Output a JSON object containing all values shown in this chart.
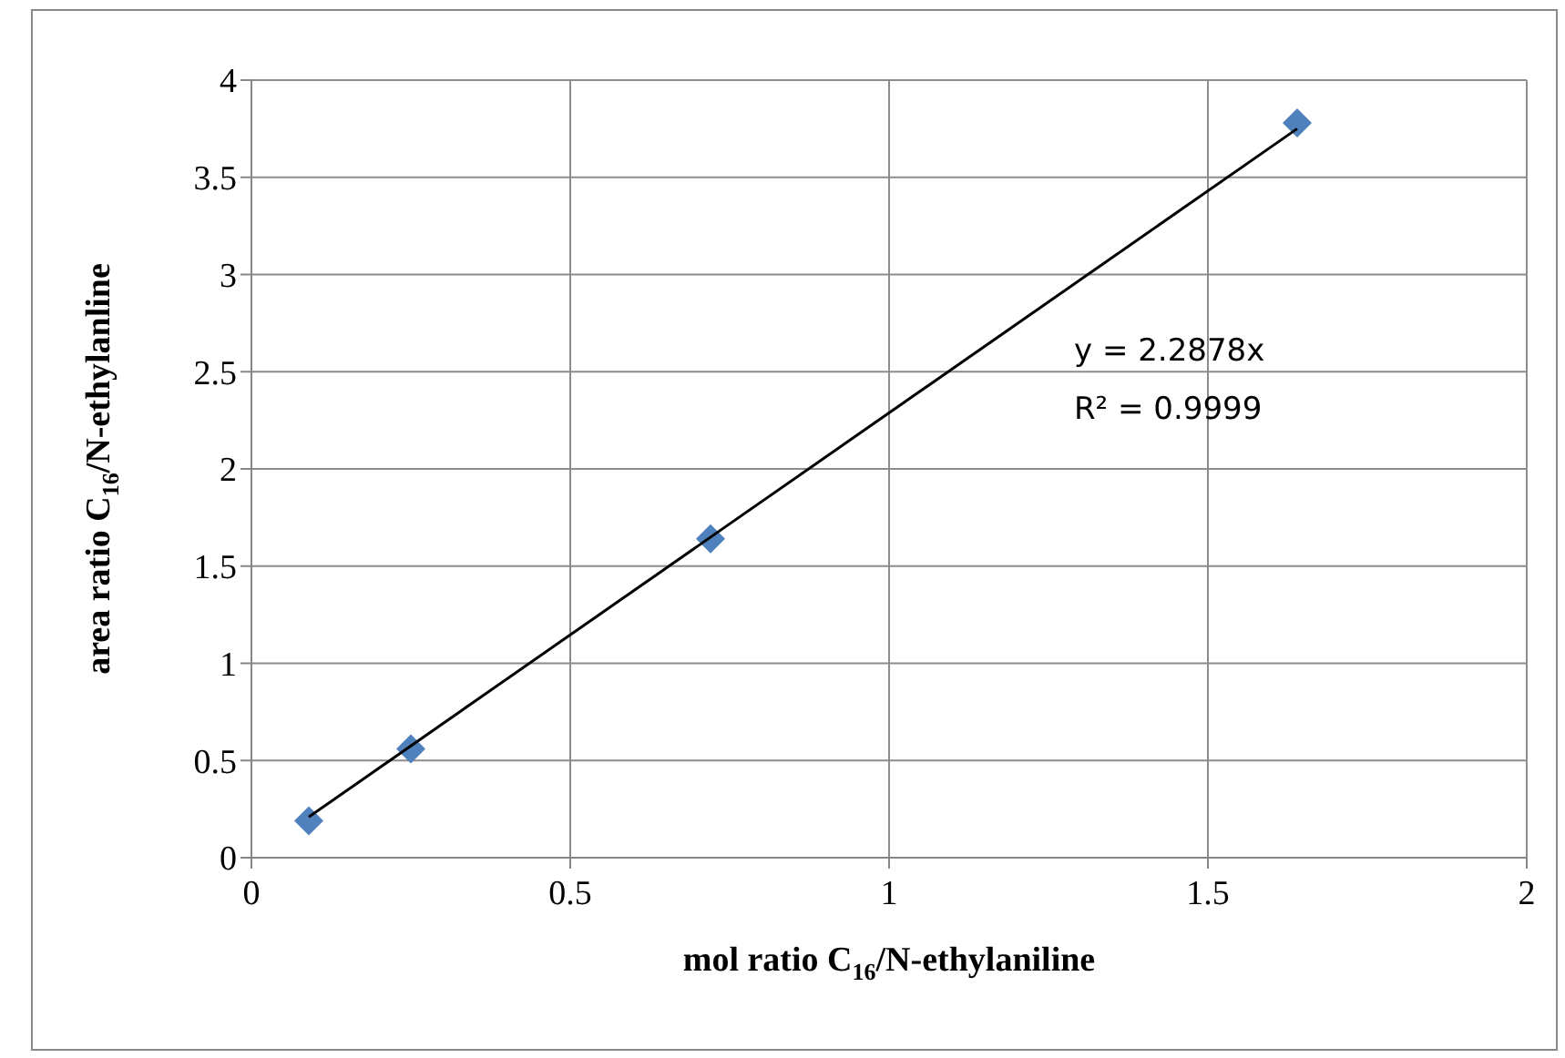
{
  "chart_data": {
    "type": "scatter",
    "xlabel": "mol ratio C$_{16}$/N-ethylaniline",
    "ylabel": "area ratio C$_{16}$/N-ethylanline",
    "x": [
      0.09,
      0.25,
      0.72,
      1.64
    ],
    "series": [
      {
        "color": "#4f81bd",
        "values": [
          0.19,
          0.56,
          1.64,
          3.78
        ],
        "marker": "diamond"
      },
      {
        "type": "line",
        "color": "#000000",
        "x": [
          0.09,
          1.64
        ],
        "values": [
          0.21,
          3.75
        ],
        "marker": "none",
        "line_style": "solid"
      }
    ],
    "annotations": [
      "y = 2.2878x",
      "R² = 0.9999"
    ],
    "xlim": [
      0,
      2
    ],
    "xticks": [
      0,
      0.5,
      1,
      1.5,
      2
    ],
    "ylim": [
      0,
      4
    ],
    "yticks": [
      0,
      0.5,
      1,
      1.5,
      2,
      2.5,
      3,
      3.5,
      4
    ],
    "grid": true
  }
}
